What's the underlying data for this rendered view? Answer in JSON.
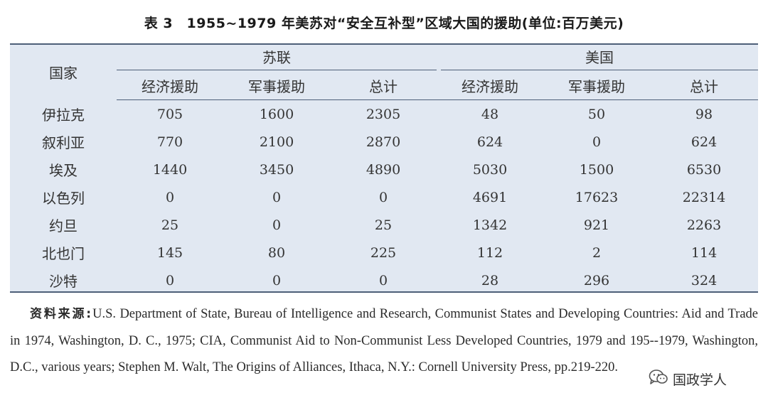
{
  "title": "表 3　1955~1979 年美苏对“安全互补型”区域大国的援助(单位:百万美元)",
  "table": {
    "country_header": "国家",
    "groups": [
      "苏联",
      "美国"
    ],
    "subheaders": [
      "经济援助",
      "军事援助",
      "总计",
      "经济援助",
      "军事援助",
      "总计"
    ],
    "rows": [
      {
        "country": "伊拉克",
        "values": [
          "705",
          "1600",
          "2305",
          "48",
          "50",
          "98"
        ]
      },
      {
        "country": "叙利亚",
        "values": [
          "770",
          "2100",
          "2870",
          "624",
          "0",
          "624"
        ]
      },
      {
        "country": "埃及",
        "values": [
          "1440",
          "3450",
          "4890",
          "5030",
          "1500",
          "6530"
        ]
      },
      {
        "country": "以色列",
        "values": [
          "0",
          "0",
          "0",
          "4691",
          "17623",
          "22314"
        ]
      },
      {
        "country": "约旦",
        "values": [
          "25",
          "0",
          "25",
          "1342",
          "921",
          "2263"
        ]
      },
      {
        "country": "北也门",
        "values": [
          "145",
          "80",
          "225",
          "112",
          "2",
          "114"
        ]
      },
      {
        "country": "沙特",
        "values": [
          "0",
          "0",
          "0",
          "28",
          "296",
          "324"
        ]
      }
    ]
  },
  "source": {
    "label": "资料来源:",
    "text": "U.S. Department of State, Bureau of Intelligence and Research, Communist States and Developing Countries: Aid and Trade in 1974, Washington, D. C., 1975; CIA, Communist Aid to Non-Communist Less Developed Countries, 1979 and 195--1979, Washington, D.C., various years; Stephen M. Walt, The Origins of Alliances, Ithaca, N.Y.: Cornell University Press, pp.219-220."
  },
  "watermark": {
    "text": "国政学人",
    "icon": "wechat-icon"
  }
}
